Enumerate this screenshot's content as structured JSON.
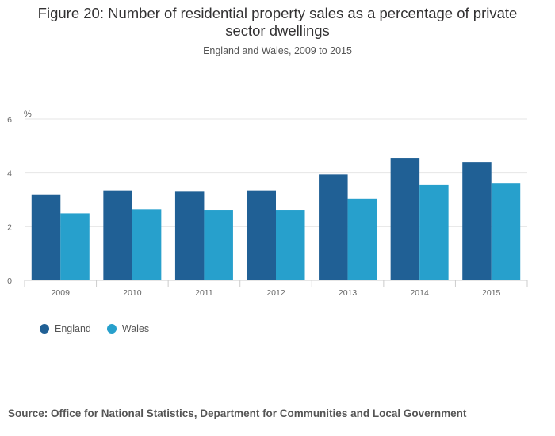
{
  "title_line1": "Figure 20: Number of residential property sales as a percentage of private",
  "title_line2": "sector dwellings",
  "subtitle": "England and Wales, 2009 to 2015",
  "source": "Source: Office for National Statistics, Department for Communities and Local Government",
  "colors": {
    "england": "#206095",
    "wales": "#27a0cc"
  },
  "chart_data": {
    "type": "bar",
    "title": "Figure 20: Number of residential property sales as a percentage of private sector dwellings",
    "subtitle": "England and Wales, 2009 to 2015",
    "ylabel": "%",
    "xlabel": "",
    "ylim": [
      0,
      6
    ],
    "yticks": [
      0,
      2,
      4,
      6
    ],
    "grid": true,
    "legend": "bottom-left",
    "categories": [
      "2009",
      "2010",
      "2011",
      "2012",
      "2013",
      "2014",
      "2015"
    ],
    "series": [
      {
        "name": "England",
        "values": [
          3.2,
          3.35,
          3.3,
          3.35,
          3.95,
          4.55,
          4.4
        ]
      },
      {
        "name": "Wales",
        "values": [
          2.5,
          2.65,
          2.6,
          2.6,
          3.05,
          3.55,
          3.6
        ]
      }
    ]
  }
}
